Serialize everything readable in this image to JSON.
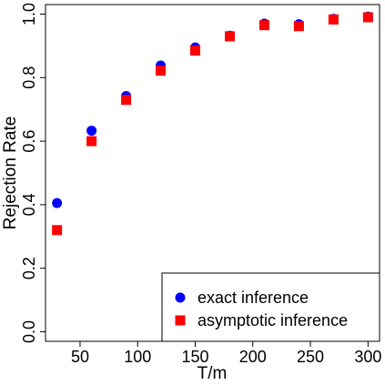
{
  "chart_data": {
    "type": "scatter",
    "xlabel": "T/m",
    "ylabel": "Rejection Rate",
    "xlim": [
      20,
      310
    ],
    "ylim": [
      -0.03,
      1.03
    ],
    "x_ticks": [
      50,
      100,
      150,
      200,
      250,
      300
    ],
    "x_tick_labels": [
      "50",
      "100",
      "150",
      "200",
      "250",
      "300"
    ],
    "y_ticks": [
      0.0,
      0.2,
      0.4,
      0.6,
      0.8,
      1.0
    ],
    "y_tick_labels": [
      "0.0",
      "0.2",
      "0.4",
      "0.6",
      "0.8",
      "1.0"
    ],
    "grid": false,
    "legend_position": "bottom-right",
    "x": [
      30,
      60,
      90,
      120,
      150,
      180,
      210,
      240,
      270,
      300
    ],
    "series": [
      {
        "name": "exact inference",
        "marker": "circle",
        "color": "#0000ff",
        "values": [
          0.405,
          0.633,
          0.742,
          0.838,
          0.895,
          0.932,
          0.97,
          0.968,
          0.985,
          0.992
        ]
      },
      {
        "name": "asymptotic inference",
        "marker": "square",
        "color": "#ff0000",
        "values": [
          0.32,
          0.6,
          0.73,
          0.822,
          0.885,
          0.93,
          0.965,
          0.962,
          0.983,
          0.99
        ]
      }
    ]
  }
}
